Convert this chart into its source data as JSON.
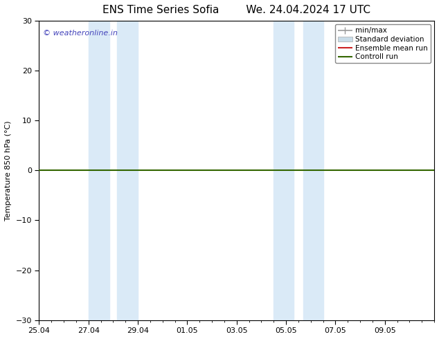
{
  "title_left": "ENS Time Series Sofia",
  "title_right": "We. 24.04.2024 17 UTC",
  "ylabel": "Temperature 850 hPa (°C)",
  "ylim": [
    -30,
    30
  ],
  "yticks": [
    -30,
    -20,
    -10,
    0,
    10,
    20,
    30
  ],
  "xtick_labels": [
    "25.04",
    "27.04",
    "29.04",
    "01.05",
    "03.05",
    "05.05",
    "07.05",
    "09.05"
  ],
  "xtick_positions": [
    0,
    2,
    4,
    6,
    8,
    10,
    12,
    14
  ],
  "xlim": [
    0,
    16
  ],
  "background_color": "#ffffff",
  "plot_bg_color": "#ffffff",
  "shaded_bands": [
    {
      "x_start": 2.0,
      "x_end": 2.85,
      "color": "#daeaf7"
    },
    {
      "x_start": 3.15,
      "x_end": 4.0,
      "color": "#daeaf7"
    },
    {
      "x_start": 9.5,
      "x_end": 10.3,
      "color": "#daeaf7"
    },
    {
      "x_start": 10.7,
      "x_end": 11.5,
      "color": "#daeaf7"
    }
  ],
  "zero_line_color": "#336600",
  "zero_line_y": 0,
  "watermark_text": "© weatheronline.in",
  "watermark_color": "#4444bb",
  "legend_items": [
    {
      "label": "min/max",
      "color": "#999999",
      "lw": 1.2,
      "style": "solid",
      "type": "errbar"
    },
    {
      "label": "Standard deviation",
      "color": "#c8dce8",
      "lw": 5,
      "style": "solid",
      "type": "band"
    },
    {
      "label": "Ensemble mean run",
      "color": "#cc2222",
      "lw": 1.5,
      "style": "solid",
      "type": "line"
    },
    {
      "label": "Controll run",
      "color": "#336600",
      "lw": 1.5,
      "style": "solid",
      "type": "line"
    }
  ],
  "minor_tick_interval": 0.5,
  "title_fontsize": 11,
  "label_fontsize": 8,
  "tick_fontsize": 8
}
